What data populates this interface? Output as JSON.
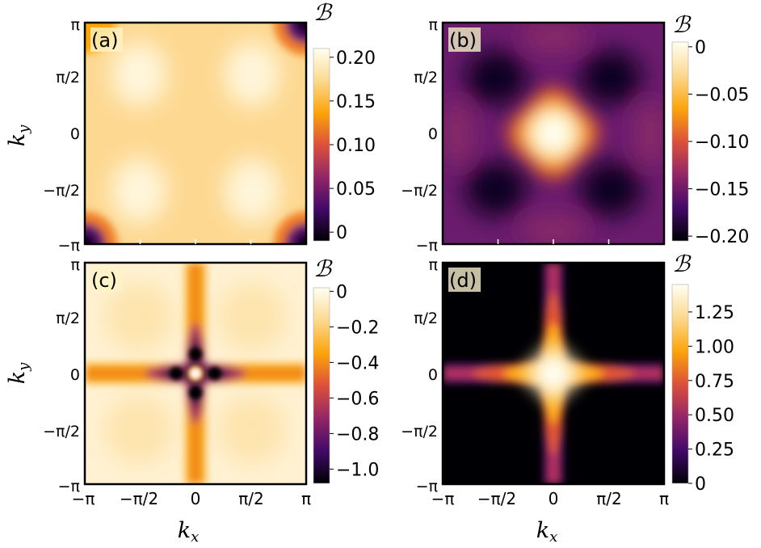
{
  "figure": {
    "x_axis_label": "k",
    "x_axis_sub": "x",
    "y_axis_label": "k",
    "y_axis_sub": "y",
    "colorbar_symbol": "ℬ",
    "pi_ticks": [
      "−π",
      "−π/2",
      "0",
      "π/2",
      "π"
    ]
  },
  "colors": {
    "colormap": [
      "#000004",
      "#420a68",
      "#932667",
      "#dd513a",
      "#fca50a",
      "#fcd98f",
      "#fffff2"
    ]
  },
  "chart_data": [
    {
      "type": "heatmap",
      "panel_label": "(a)",
      "xlabel": "k_x",
      "ylabel": "k_y",
      "xlim": [
        -3.1416,
        3.1416
      ],
      "ylim": [
        -3.1416,
        3.1416
      ],
      "colorbar": {
        "title": "ℬ",
        "range": [
          -0.01,
          0.21
        ],
        "ticks": [
          0.0,
          0.05,
          0.1,
          0.15,
          0.2
        ],
        "tick_labels": [
          "0",
          "0.05",
          "0.10",
          "0.15",
          "0.20"
        ]
      },
      "pattern": "bright lobes near (±π/2, ±π/2), dark corners at (±π, ±π)"
    },
    {
      "type": "heatmap",
      "panel_label": "(b)",
      "xlabel": "k_x",
      "ylabel": "k_y",
      "xlim": [
        -3.1416,
        3.1416
      ],
      "ylim": [
        -3.1416,
        3.1416
      ],
      "colorbar": {
        "title": "ℬ",
        "range": [
          -0.205,
          0.005
        ],
        "ticks": [
          0,
          -0.05,
          -0.1,
          -0.15,
          -0.2
        ],
        "tick_labels": [
          "0",
          "−0.05",
          "−0.10",
          "−0.15",
          "−0.20"
        ]
      },
      "pattern": "bright center peak at (0,0), dark spots near (±π/2, ±π/2)"
    },
    {
      "type": "heatmap",
      "panel_label": "(c)",
      "xlabel": "k_x",
      "ylabel": "k_y",
      "xlim": [
        -3.1416,
        3.1416
      ],
      "ylim": [
        -3.1416,
        3.1416
      ],
      "colorbar": {
        "title": "ℬ",
        "range": [
          -1.08,
          0.02
        ],
        "ticks": [
          0,
          -0.2,
          -0.4,
          -0.6,
          -0.8,
          -1.0
        ],
        "tick_labels": [
          "0",
          "−0.2",
          "−0.4",
          "−0.6",
          "−0.8",
          "−1.0"
        ]
      },
      "pattern": "dark cross along k_x=0 and k_y=0 with bright dot at the origin"
    },
    {
      "type": "heatmap",
      "panel_label": "(d)",
      "xlabel": "k_x",
      "ylabel": "k_y",
      "xlim": [
        -3.1416,
        3.1416
      ],
      "ylim": [
        -3.1416,
        3.1416
      ],
      "colorbar": {
        "title": "ℬ",
        "range": [
          0,
          1.45
        ],
        "ticks": [
          0,
          0.25,
          0.5,
          0.75,
          1.0,
          1.25
        ],
        "tick_labels": [
          "0",
          "0.25",
          "0.50",
          "0.75",
          "1.00",
          "1.25"
        ]
      },
      "pattern": "bright cross along k_x=0 and k_y=0, dark background"
    }
  ]
}
